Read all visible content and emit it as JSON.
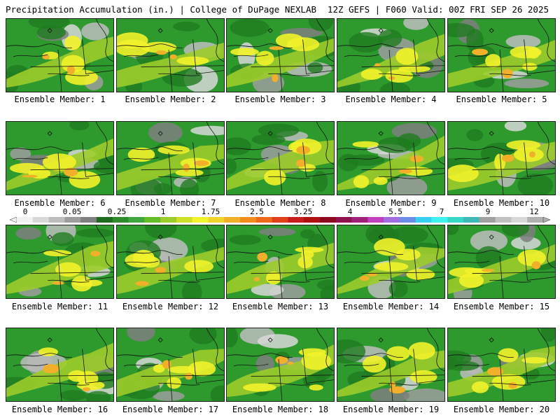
{
  "header": {
    "title": "Precipitation Accumulation (in.) | College of DuPage NEXLAB",
    "run_info": "12Z GEFS | F060 Valid: 00Z FRI SEP 26 2025"
  },
  "colorbar": {
    "ticks": [
      "0",
      "0.05",
      "0.25",
      "1",
      "1.75",
      "2.5",
      "3.25",
      "4",
      "5.5",
      "7",
      "9",
      "12"
    ],
    "colors": [
      "#f2f2f2",
      "#d8d8d8",
      "#bdbdbd",
      "#9d9d9d",
      "#7f7f7f",
      "#1f6b1f",
      "#2e8b2e",
      "#3fa73f",
      "#66bd2a",
      "#9ccc2a",
      "#cce02a",
      "#f2f22a",
      "#f2d52a",
      "#f2b02a",
      "#f28c1a",
      "#ee6a1a",
      "#e04018",
      "#c81c1c",
      "#b01010",
      "#8e0a20",
      "#8e1050",
      "#a0207a",
      "#c040c0",
      "#a06ce0",
      "#6c8ce8",
      "#38d0f0",
      "#3ff2f2",
      "#38d8c8",
      "#3fb8b8",
      "#a0a0a0",
      "#c0c0c0",
      "#d8d8d8",
      "#b0b0b0"
    ]
  },
  "members": [
    {
      "label": "Ensemble Member: 1"
    },
    {
      "label": "Ensemble Member: 2"
    },
    {
      "label": "Ensemble Member: 3"
    },
    {
      "label": "Ensemble Member: 4"
    },
    {
      "label": "Ensemble Member: 5"
    },
    {
      "label": "Ensemble Member: 6"
    },
    {
      "label": "Ensemble Member: 7"
    },
    {
      "label": "Ensemble Member: 8"
    },
    {
      "label": "Ensemble Member: 9"
    },
    {
      "label": "Ensemble Member: 10"
    },
    {
      "label": "Ensemble Member: 11"
    },
    {
      "label": "Ensemble Member: 12"
    },
    {
      "label": "Ensemble Member: 13"
    },
    {
      "label": "Ensemble Member: 14"
    },
    {
      "label": "Ensemble Member: 15"
    },
    {
      "label": "Ensemble Member: 16"
    },
    {
      "label": "Ensemble Member: 17"
    },
    {
      "label": "Ensemble Member: 18"
    },
    {
      "label": "Ensemble Member: 19"
    },
    {
      "label": "Ensemble Member: 20"
    }
  ]
}
